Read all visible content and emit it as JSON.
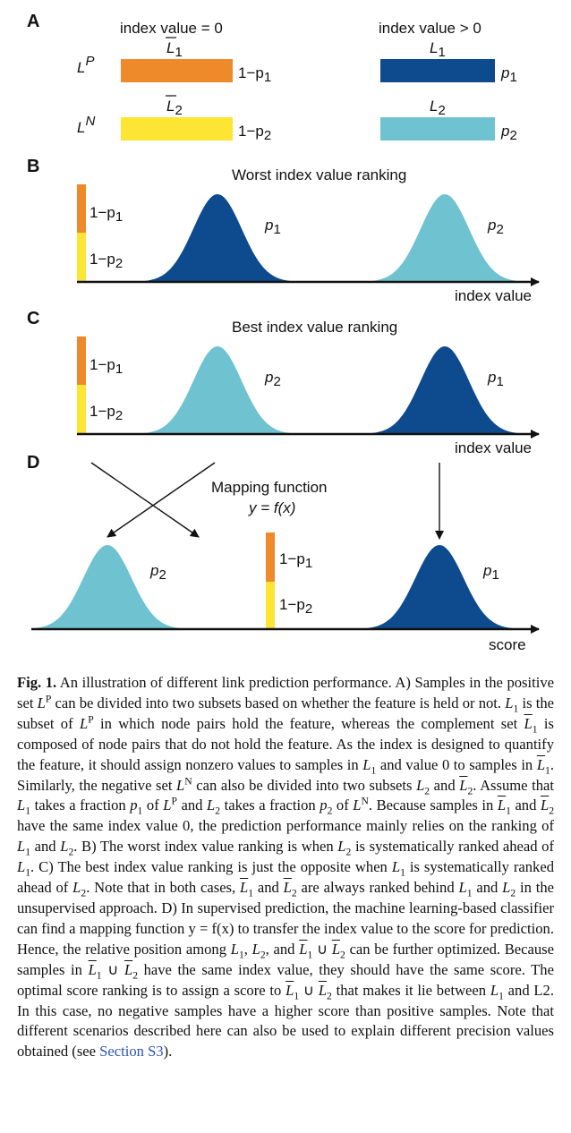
{
  "colors": {
    "orange": "#ef8a2a",
    "yellow": "#fde533",
    "dark_blue": "#0d4a8e",
    "light_blue": "#6fc2d0"
  },
  "panel_a": {
    "letter": "A",
    "left_header": "index value = 0",
    "right_header": "index value > 0",
    "row1_label": "L",
    "row1_sup": "P",
    "row2_label": "L",
    "row2_sup": "N",
    "l1bar_label": "L",
    "l1bar_sub": "1",
    "l2bar_label": "L",
    "l2bar_sub": "2",
    "l1_label": "L",
    "l1_sub": "1",
    "l2_label": "L",
    "l2_sub": "2",
    "orange_value": "1−p",
    "orange_value_sub": "1",
    "yellow_value": "1−p",
    "yellow_value_sub": "2",
    "dark_value": "p",
    "dark_value_sub": "1",
    "light_value": "p",
    "light_value_sub": "2"
  },
  "panel_b": {
    "letter": "B",
    "title": "Worst index value ranking",
    "bar_top": "1−p",
    "bar_top_sub": "1",
    "bar_bottom": "1−p",
    "bar_bottom_sub": "2",
    "curve1_label": "p",
    "curve1_sub": "1",
    "curve2_label": "p",
    "curve2_sub": "2",
    "axis_label": "index value"
  },
  "panel_c": {
    "letter": "C",
    "title": "Best index value ranking",
    "bar_top": "1−p",
    "bar_top_sub": "1",
    "bar_bottom": "1−p",
    "bar_bottom_sub": "2",
    "curve1_label": "p",
    "curve1_sub": "2",
    "curve2_label": "p",
    "curve2_sub": "1",
    "axis_label": "index value"
  },
  "panel_d": {
    "letter": "D",
    "title": "Mapping function",
    "formula": "y = f(x)",
    "bar_top": "1−p",
    "bar_top_sub": "1",
    "bar_bottom": "1−p",
    "bar_bottom_sub": "2",
    "curve1_label": "p",
    "curve1_sub": "2",
    "curve2_label": "p",
    "curve2_sub": "1",
    "axis_label": "score"
  },
  "caption": {
    "label": "Fig. 1.",
    "s1": "An illustration of different link prediction performance. A) Samples in the positive set ",
    "s2": " can be divided into two subsets based on whether the feature is held or not. ",
    "s3": " is the subset of ",
    "s4": " in which node pairs hold the feature, whereas the complement set ",
    "s5": " is composed of node pairs that do not hold the feature. As the index is designed to quantify the feature, it should assign nonzero values to samples in ",
    "s6": " and value 0 to samples in ",
    "s7": ". Similarly, the negative set ",
    "s8": " can also be divided into two subsets ",
    "s9": " and ",
    "s10": ". Assume that ",
    "s11": " takes a fraction ",
    "s12": " of ",
    "s13": " and ",
    "s14": " takes a fraction ",
    "s15": " of ",
    "s16": ". Because samples in ",
    "s17": " and ",
    "s18": " have the same index value 0, the prediction performance mainly relies on the ranking of ",
    "s19": " and ",
    "s20": ". B) The worst index value ranking is when ",
    "s21": " is systematically ranked ahead of ",
    "s22": ". C) The best index value ranking is just the opposite when ",
    "s23": " is systematically ranked ahead of ",
    "s24": ". Note that in both cases, ",
    "s25": " and ",
    "s26": " are always ranked behind ",
    "s27": " and ",
    "s28": " in the unsupervised approach. D) In supervised prediction, the machine learning-based classifier can find a mapping function ",
    "s29": " to transfer the index value to the score for prediction. Hence, the relative position among ",
    "s30": ", ",
    "s31": ", and ",
    "s32": " can be further optimized. Because samples in ",
    "s33": " have the same index value, they should have the same score. The optimal score ranking is to assign a score to ",
    "s34": " that makes it lie between ",
    "s35": " and L2. In this case, no negative samples have a higher score than positive samples. Note that different scenarios described here can also be used to explain different precision values obtained (see ",
    "link": "Section S3",
    "s36": ").",
    "set_letter": "L",
    "sup_p": "P",
    "sup_n": "N",
    "sub_1": "1",
    "sub_2": "2",
    "p_letter": "p",
    "union": " ∪ ",
    "formula": "y = f(x)"
  }
}
